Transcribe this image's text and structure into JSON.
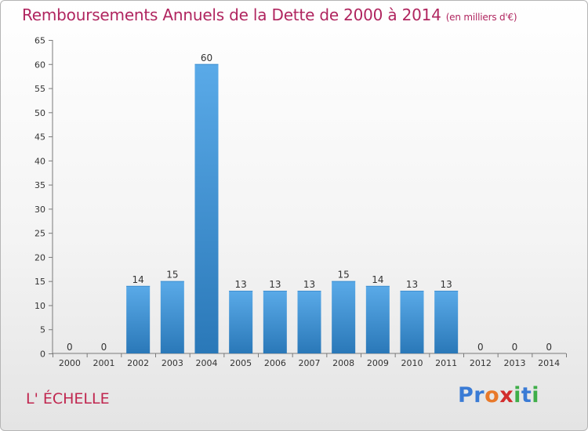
{
  "header": {
    "title": "Remboursements Annuels de la Dette de 2000 à 2014",
    "unit_note": "(en milliers d'€)"
  },
  "footer": {
    "commune": "L' ÉCHELLE",
    "logo_text": "Proxiti",
    "logo_colors": [
      "#3a7bd5",
      "#3a7bd5",
      "#e8792a",
      "#d22c2c",
      "#3fae49",
      "#3a7bd5",
      "#3fae49"
    ]
  },
  "chart_data": {
    "type": "bar",
    "title": "Remboursements Annuels de la Dette de 2000 à 2014",
    "subtitle": "(en milliers d'€)",
    "xlabel": "",
    "ylabel": "",
    "categories": [
      "2000",
      "2001",
      "2002",
      "2003",
      "2004",
      "2005",
      "2006",
      "2007",
      "2008",
      "2009",
      "2010",
      "2011",
      "2012",
      "2013",
      "2014"
    ],
    "values": [
      0,
      0,
      14,
      15,
      60,
      13,
      13,
      13,
      15,
      14,
      13,
      13,
      0,
      0,
      0
    ],
    "ylim": [
      0,
      65
    ],
    "yticks": [
      0,
      5,
      10,
      15,
      20,
      25,
      30,
      35,
      40,
      45,
      50,
      55,
      60,
      65
    ],
    "grid": false,
    "bar_color_top": "#5aaae8",
    "bar_color_bottom": "#2a78b8"
  }
}
